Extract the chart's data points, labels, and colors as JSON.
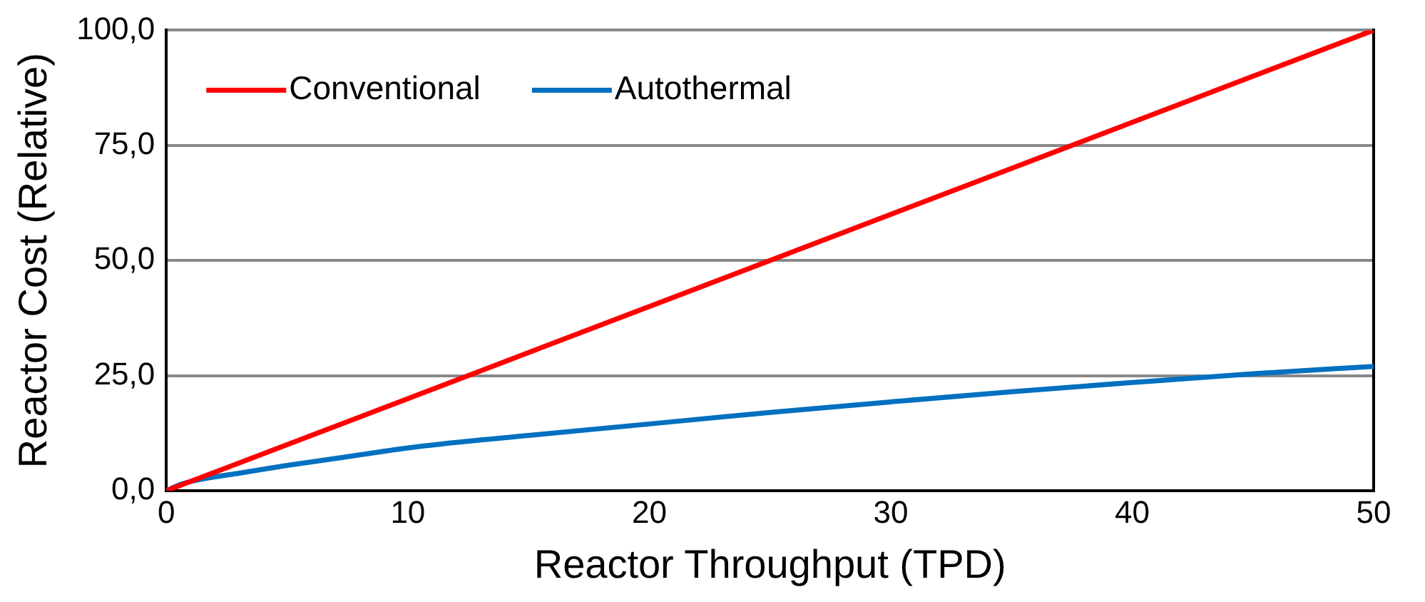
{
  "chart_data": {
    "type": "line",
    "xlabel": "Reactor Throughput (TPD)",
    "ylabel": "Reactor Cost (Relative)",
    "xlim": [
      0,
      50
    ],
    "xticks": [
      0,
      10,
      20,
      30,
      40,
      50
    ],
    "ylim": [
      0,
      100
    ],
    "yticks": [
      {
        "value": 0,
        "label": "0,0"
      },
      {
        "value": 25,
        "label": "25,0"
      },
      {
        "value": 50,
        "label": "50,0"
      },
      {
        "value": 75,
        "label": "75,0"
      },
      {
        "value": 100,
        "label": "100,0"
      }
    ],
    "grid": "y",
    "legend": "top left",
    "marker": "none",
    "line_style": "solid",
    "series": [
      {
        "name": "Conventional",
        "color": "#ff0000",
        "x": [
          0,
          50
        ],
        "values": [
          0,
          100
        ]
      },
      {
        "name": "Autothermal",
        "color": "#0070c0",
        "x": [
          0,
          0.5,
          1,
          2,
          3,
          5,
          7,
          10,
          12,
          15,
          20,
          25,
          30,
          35,
          40,
          45,
          50
        ],
        "values": [
          0,
          1.2,
          2,
          3,
          3.8,
          5.5,
          7,
          9.3,
          10.5,
          12,
          14.5,
          17,
          19.3,
          21.5,
          23.5,
          25.4,
          27
        ]
      }
    ]
  }
}
